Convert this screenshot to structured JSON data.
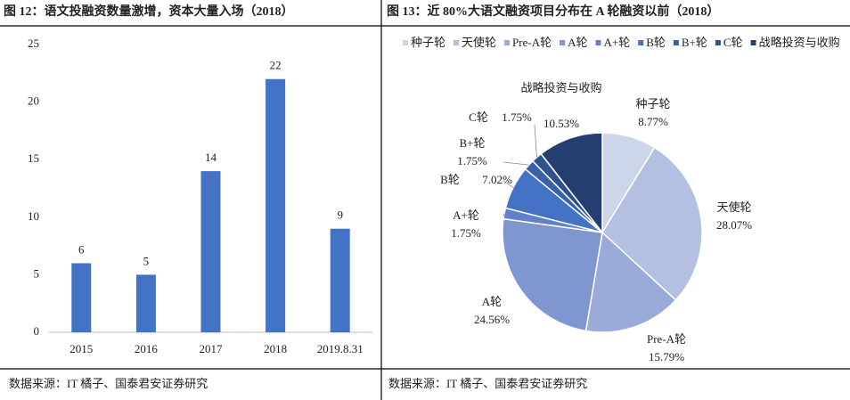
{
  "chart_data": [
    {
      "type": "bar",
      "title": "图 12：语文投融资数量激增，资本大量入场（2018）",
      "categories": [
        "2015",
        "2016",
        "2017",
        "2018",
        "2019.8.31"
      ],
      "values": [
        6,
        5,
        14,
        22,
        9
      ],
      "color": "#4472c4",
      "ylim": [
        0,
        25
      ],
      "yticks": [
        0,
        5,
        10,
        15,
        20,
        25
      ],
      "source": "数据来源：IT 橘子、国泰君安证券研究"
    },
    {
      "type": "pie",
      "title": "图 13：近 80%大语文融资项目分布在 A 轮融资以前（2018）",
      "categories": [
        "种子轮",
        "天使轮",
        "Pre-A轮",
        "A轮",
        "A+轮",
        "B轮",
        "B+轮",
        "C轮",
        "战略投资与收购"
      ],
      "values": [
        8.77,
        28.07,
        15.79,
        24.56,
        1.75,
        7.02,
        1.75,
        1.75,
        10.53
      ],
      "value_labels": [
        "8.77%",
        "28.07%",
        "15.79%",
        "24.56%",
        "1.75%",
        "7.02%",
        "1.75%",
        "1.75%",
        "10.53%"
      ],
      "colors": [
        "#cdd5ea",
        "#b3c0e2",
        "#9aabd9",
        "#7f96d0",
        "#5f80ca",
        "#4472c4",
        "#3a62a8",
        "#2f518c",
        "#243f6f"
      ],
      "legend": "top",
      "source": "数据来源：IT 橘子、国泰君安证券研究"
    }
  ]
}
